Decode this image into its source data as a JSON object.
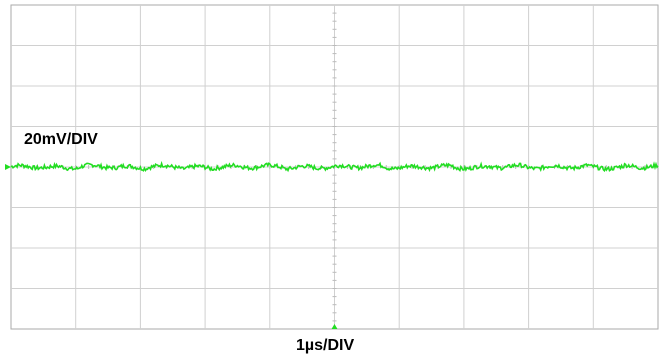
{
  "chart_data": {
    "type": "line",
    "title": "",
    "ylabel": "20mV/DIV",
    "xlabel": "1µs/DIV",
    "x_divisions": 10,
    "y_divisions": 8,
    "xlim": [
      0,
      10
    ],
    "ylim": [
      -4,
      4
    ],
    "grid": true,
    "series": [
      {
        "color": "#22dd22",
        "description_level_div": 0,
        "noise_amplitude_div": 0.05,
        "ripple_period_div": 0.55,
        "values_div": [
          0.02,
          -0.03,
          0.04,
          -0.02,
          0.03,
          -0.04,
          0.02,
          0.03,
          -0.03,
          0.01,
          0.04,
          -0.02,
          0.02,
          -0.03,
          0.03,
          -0.01,
          0.02,
          -0.04,
          0.03,
          0.01
        ]
      }
    ],
    "colors": {
      "grid": "#d0d0d0",
      "trace": "#22dd22",
      "frame": "#aaaaaa"
    }
  }
}
